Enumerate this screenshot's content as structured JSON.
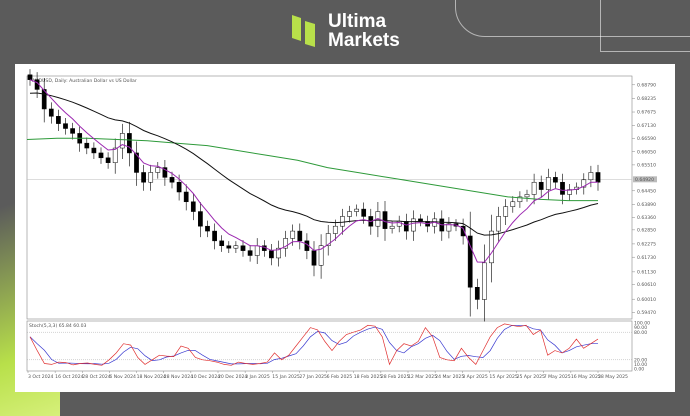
{
  "brand": {
    "name_line1": "Ultima",
    "name_line2": "Markets",
    "accent": "#b8e04a"
  },
  "chart_data": [
    {
      "type": "candlestick",
      "title": "AUDUSD, Daily: Australian Dollar vs US Dollar",
      "current_price_label": "0.64920",
      "y_ticks": [
        "0.68790",
        "0.68235",
        "0.67675",
        "0.67130",
        "0.66590",
        "0.66050",
        "0.65510",
        "0.64450",
        "0.63890",
        "0.63360",
        "0.62850",
        "0.62275",
        "0.61730",
        "0.61130",
        "0.60610",
        "0.60010",
        "0.59470"
      ],
      "ylim": [
        0.592,
        0.6915
      ],
      "x_ticks": [
        "3 Oct 2024",
        "16 Oct 2024",
        "28 Oct 2024",
        "6 Nov 2024",
        "18 Nov 2024",
        "28 Nov 2024",
        "10 Dec 2024",
        "20 Dec 2024",
        "3 Jan 2025",
        "15 Jan 2025",
        "27 Jan 2025",
        "6 Feb 2025",
        "18 Feb 2025",
        "28 Feb 2025",
        "12 Mar 2025",
        "24 Mar 2025",
        "3 Apr 2025",
        "15 Apr 2025",
        "25 Apr 2025",
        "7 May 2025",
        "16 May 2025",
        "28 May 2025"
      ],
      "closes": [
        0.69,
        0.686,
        0.678,
        0.675,
        0.672,
        0.67,
        0.668,
        0.664,
        0.662,
        0.66,
        0.658,
        0.656,
        0.662,
        0.668,
        0.66,
        0.652,
        0.648,
        0.652,
        0.654,
        0.65,
        0.648,
        0.644,
        0.64,
        0.636,
        0.63,
        0.628,
        0.624,
        0.622,
        0.621,
        0.622,
        0.62,
        0.618,
        0.622,
        0.62,
        0.617,
        0.621,
        0.625,
        0.628,
        0.624,
        0.62,
        0.614,
        0.622,
        0.627,
        0.63,
        0.634,
        0.636,
        0.637,
        0.634,
        0.63,
        0.636,
        0.629,
        0.63,
        0.632,
        0.628,
        0.633,
        0.632,
        0.63,
        0.633,
        0.628,
        0.631,
        0.63,
        0.626,
        0.605,
        0.6,
        0.615,
        0.628,
        0.634,
        0.638,
        0.64,
        0.642,
        0.643,
        0.648,
        0.645,
        0.65,
        0.648,
        0.643,
        0.645,
        0.646,
        0.649,
        0.652,
        0.648
      ],
      "series": [
        {
          "color": "#9b27b0"
        },
        {
          "color": "#111111"
        },
        {
          "color": "#2e9a3a",
          "values": [
            0.6655,
            0.666,
            0.666,
            0.6655,
            0.665,
            0.664,
            0.663,
            0.661,
            0.659,
            0.657,
            0.654,
            0.652,
            0.65,
            0.648,
            0.646,
            0.644,
            0.642,
            0.641,
            0.6405,
            0.6405
          ]
        }
      ]
    },
    {
      "type": "line",
      "title": "Stoch(5,3,3) 65.84 60.03",
      "ylim": [
        0,
        100
      ],
      "y_ticks": [
        "100.00",
        "90.00",
        "80.00",
        "20.00",
        "10.00",
        "0.00"
      ],
      "levels": [
        80,
        20
      ],
      "series": [
        {
          "color": "#e03030",
          "values": [
            70,
            40,
            12,
            10,
            15,
            14,
            9,
            12,
            13,
            10,
            8,
            20,
            35,
            55,
            52,
            25,
            10,
            20,
            30,
            28,
            27,
            50,
            45,
            25,
            20,
            18,
            15,
            10,
            8,
            15,
            12,
            10,
            12,
            15,
            35,
            20,
            30,
            50,
            70,
            90,
            85,
            60,
            40,
            60,
            75,
            80,
            85,
            95,
            93,
            70,
            10,
            40,
            55,
            50,
            60,
            90,
            70,
            25,
            20,
            18,
            45,
            25,
            10,
            40,
            70,
            90,
            98,
            95,
            92,
            95,
            75,
            85,
            30,
            40,
            35,
            45,
            65,
            45,
            55,
            65
          ]
        },
        {
          "color": "#3a3ad0"
        }
      ]
    }
  ]
}
